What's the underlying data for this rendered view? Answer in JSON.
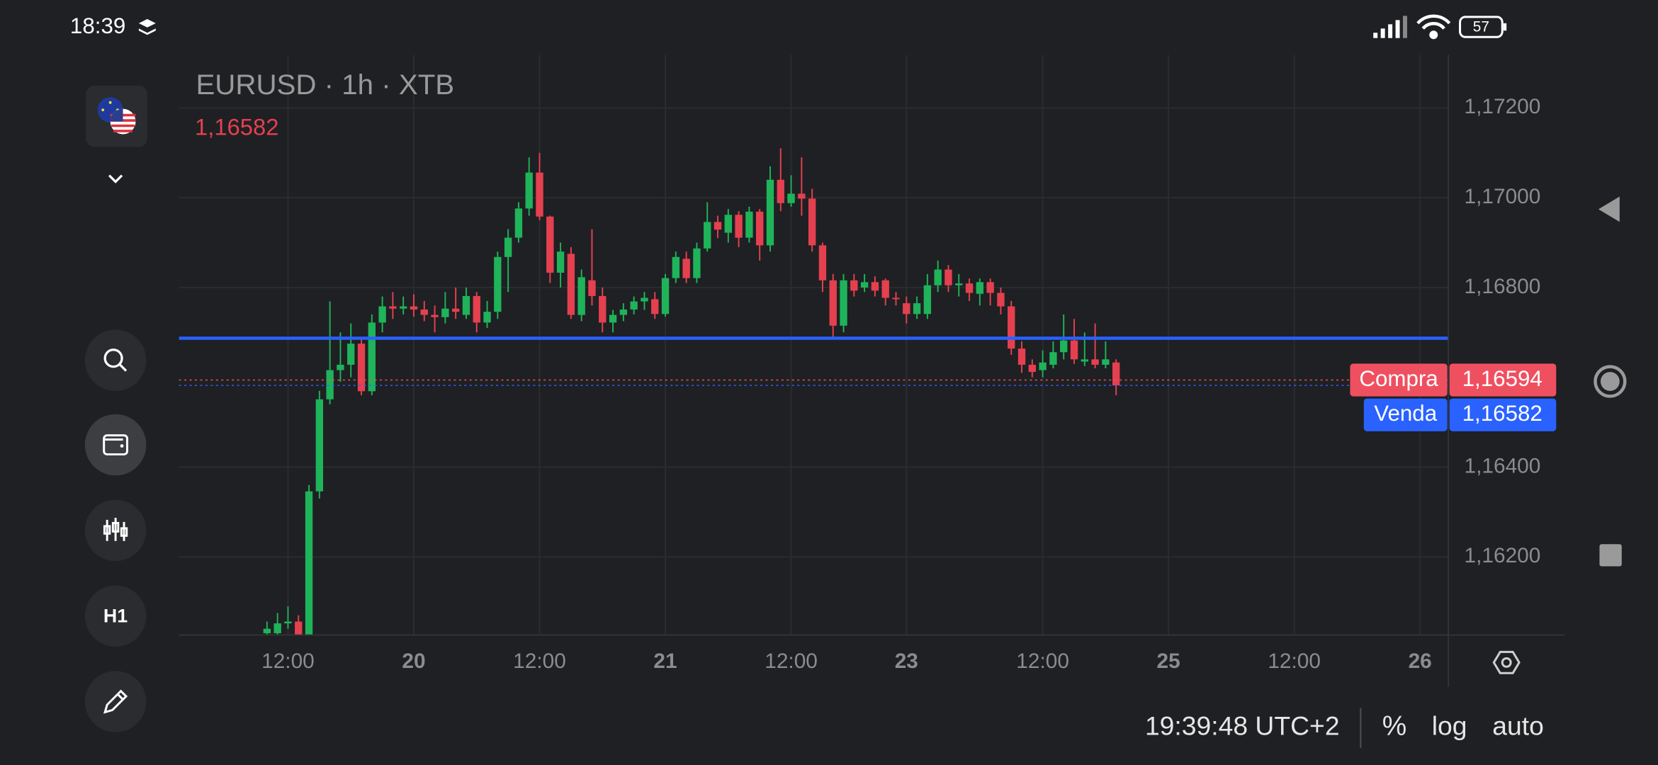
{
  "status_bar": {
    "time": "18:39",
    "battery": "57"
  },
  "sidebar": {
    "timeframe_button": "H1"
  },
  "footer": {
    "clock": "19:39:48 UTC+2",
    "percent": "%",
    "log": "log",
    "auto": "auto"
  },
  "chart_data": {
    "type": "candlestick",
    "title": "EURUSD · 1h · XTB",
    "last_price": "1,16582",
    "up_color": "#1fb35a",
    "down_color": "#e5404f",
    "log_scale": false,
    "grid": true,
    "xlim": [
      -8.4,
      112.7
    ],
    "xticks": [
      {
        "value": 2,
        "label": "12:00"
      },
      {
        "value": 14,
        "label": "20"
      },
      {
        "value": 26,
        "label": "12:00"
      },
      {
        "value": 38,
        "label": "21"
      },
      {
        "value": 50,
        "label": "12:00"
      },
      {
        "value": 61,
        "label": "23"
      },
      {
        "value": 74,
        "label": "12:00"
      },
      {
        "value": 86,
        "label": "25"
      },
      {
        "value": 98,
        "label": "12:00"
      },
      {
        "value": 110,
        "label": "26"
      }
    ],
    "ylim": [
      1.16026,
      1.17318
    ],
    "yticks": [
      {
        "value": 1.172,
        "label": "1,17200"
      },
      {
        "value": 1.17,
        "label": "1,17000"
      },
      {
        "value": 1.168,
        "label": "1,16800"
      },
      {
        "value": 1.164,
        "label": "1,16400"
      },
      {
        "value": 1.162,
        "label": "1,16200"
      }
    ],
    "x": [
      0,
      1,
      2,
      3,
      4,
      5,
      6,
      7,
      8,
      9,
      10,
      11,
      12,
      13,
      14,
      15,
      16,
      17,
      18,
      19,
      20,
      21,
      22,
      23,
      24,
      25,
      26,
      27,
      28,
      29,
      30,
      31,
      32,
      33,
      34,
      35,
      36,
      37,
      38,
      39,
      40,
      41,
      42,
      43,
      44,
      45,
      46,
      47,
      48,
      49,
      50,
      51,
      52,
      53,
      54,
      55,
      56,
      57,
      58,
      59,
      60,
      61,
      62,
      63,
      64,
      65,
      66,
      67,
      68,
      69,
      70,
      71,
      72,
      73,
      74,
      75,
      76,
      77,
      78,
      79,
      80,
      81
    ],
    "open": [
      1.1603,
      1.1603,
      1.16052,
      1.16056,
      1.1602,
      1.16346,
      1.16551,
      1.16616,
      1.16628,
      1.16675,
      1.16569,
      1.16722,
      1.16758,
      1.16753,
      1.16758,
      1.16751,
      1.16739,
      1.16734,
      1.16753,
      1.16739,
      1.16781,
      1.16722,
      1.16746,
      1.16868,
      1.16911,
      1.16976,
      1.17056,
      1.16958,
      1.16833,
      1.16875,
      1.16739,
      1.16816,
      1.16781,
      1.16722,
      1.16739,
      1.16751,
      1.16769,
      1.16774,
      1.16741,
      1.16821,
      1.16864,
      1.16821,
      1.16887,
      1.16946,
      1.16922,
      1.16962,
      1.16911,
      1.16969,
      1.16894,
      1.1704,
      1.16988,
      1.17009,
      1.16998,
      1.16894,
      1.16816,
      1.16715,
      1.16816,
      1.168,
      1.16812,
      1.16816,
      1.16777,
      1.16765,
      1.16741,
      1.16741,
      1.16805,
      1.1684,
      1.16805,
      1.16809,
      1.16786,
      1.16812,
      1.16788,
      1.16758,
      1.16664,
      1.16628,
      1.16616,
      1.16628,
      1.16656,
      1.16682,
      1.16635,
      1.1664,
      1.16628,
      1.16633
    ],
    "high": [
      1.16056,
      1.16075,
      1.1609,
      1.1607,
      1.1636,
      1.1657,
      1.16769,
      1.167,
      1.1672,
      1.1669,
      1.1674,
      1.1678,
      1.1679,
      1.1678,
      1.16785,
      1.1677,
      1.1676,
      1.1679,
      1.168,
      1.168,
      1.1679,
      1.1677,
      1.1688,
      1.1693,
      1.1699,
      1.1709,
      1.171,
      1.1696,
      1.169,
      1.1689,
      1.1684,
      1.1693,
      1.168,
      1.1675,
      1.16765,
      1.1678,
      1.1679,
      1.1679,
      1.1683,
      1.1688,
      1.1688,
      1.169,
      1.1699,
      1.1696,
      1.16975,
      1.1697,
      1.1698,
      1.16975,
      1.1707,
      1.1711,
      1.1705,
      1.1709,
      1.1702,
      1.169,
      1.1683,
      1.1683,
      1.1683,
      1.1683,
      1.16825,
      1.1682,
      1.1679,
      1.1678,
      1.1678,
      1.1683,
      1.1686,
      1.1685,
      1.1683,
      1.1682,
      1.1682,
      1.1682,
      1.168,
      1.1677,
      1.1668,
      1.1664,
      1.1666,
      1.1668,
      1.1674,
      1.1673,
      1.167,
      1.1672,
      1.1668,
      1.1664
    ],
    "low": [
      1.1601,
      1.1602,
      1.1604,
      1.16,
      1.16,
      1.1633,
      1.1654,
      1.1659,
      1.166,
      1.1656,
      1.1656,
      1.167,
      1.1673,
      1.1674,
      1.16735,
      1.16725,
      1.167,
      1.1672,
      1.1673,
      1.1673,
      1.167,
      1.1671,
      1.1673,
      1.1679,
      1.169,
      1.1696,
      1.1695,
      1.1681,
      1.168,
      1.1673,
      1.16725,
      1.1676,
      1.167,
      1.167,
      1.16725,
      1.1674,
      1.1675,
      1.1673,
      1.16735,
      1.1681,
      1.1681,
      1.1681,
      1.1688,
      1.1691,
      1.169,
      1.1689,
      1.169,
      1.1686,
      1.1688,
      1.1697,
      1.1698,
      1.1696,
      1.1688,
      1.1679,
      1.1669,
      1.167,
      1.1678,
      1.1679,
      1.1678,
      1.1676,
      1.1676,
      1.1672,
      1.1673,
      1.1673,
      1.1679,
      1.1679,
      1.1678,
      1.1677,
      1.1676,
      1.1676,
      1.1674,
      1.1665,
      1.1661,
      1.166,
      1.166,
      1.1662,
      1.1664,
      1.1663,
      1.16625,
      1.1662,
      1.1662,
      1.1656
    ],
    "close": [
      1.1604,
      1.16052,
      1.16056,
      1.1602,
      1.16346,
      1.16551,
      1.16616,
      1.16628,
      1.16675,
      1.16569,
      1.16722,
      1.16758,
      1.16753,
      1.16758,
      1.16751,
      1.16739,
      1.16734,
      1.16753,
      1.16746,
      1.16781,
      1.16722,
      1.16746,
      1.16868,
      1.16911,
      1.16976,
      1.17056,
      1.16958,
      1.16833,
      1.1688,
      1.16739,
      1.16823,
      1.16781,
      1.16722,
      1.16739,
      1.16751,
      1.16769,
      1.16777,
      1.16741,
      1.16821,
      1.16868,
      1.16821,
      1.16887,
      1.16946,
      1.16929,
      1.16962,
      1.16911,
      1.16969,
      1.16894,
      1.1704,
      1.16988,
      1.17009,
      1.16998,
      1.16894,
      1.16816,
      1.16715,
      1.16816,
      1.16793,
      1.16812,
      1.16793,
      1.16777,
      1.16774,
      1.16741,
      1.16765,
      1.16805,
      1.1684,
      1.16805,
      1.16809,
      1.16788,
      1.16812,
      1.16788,
      1.16758,
      1.16664,
      1.16628,
      1.16612,
      1.16633,
      1.16656,
      1.16682,
      1.1664,
      1.1664,
      1.16628,
      1.1664,
      1.16582
    ],
    "hline": {
      "value": 1.16687,
      "color": "#2962ff"
    },
    "price_tags": [
      {
        "label": "Compra",
        "price": {
          "value": 1.16594,
          "label": "1,16594"
        },
        "color": "#ef5060"
      },
      {
        "label": "Venda",
        "price": {
          "value": 1.16582,
          "label": "1,16582"
        },
        "color": "#2962ff"
      }
    ]
  }
}
